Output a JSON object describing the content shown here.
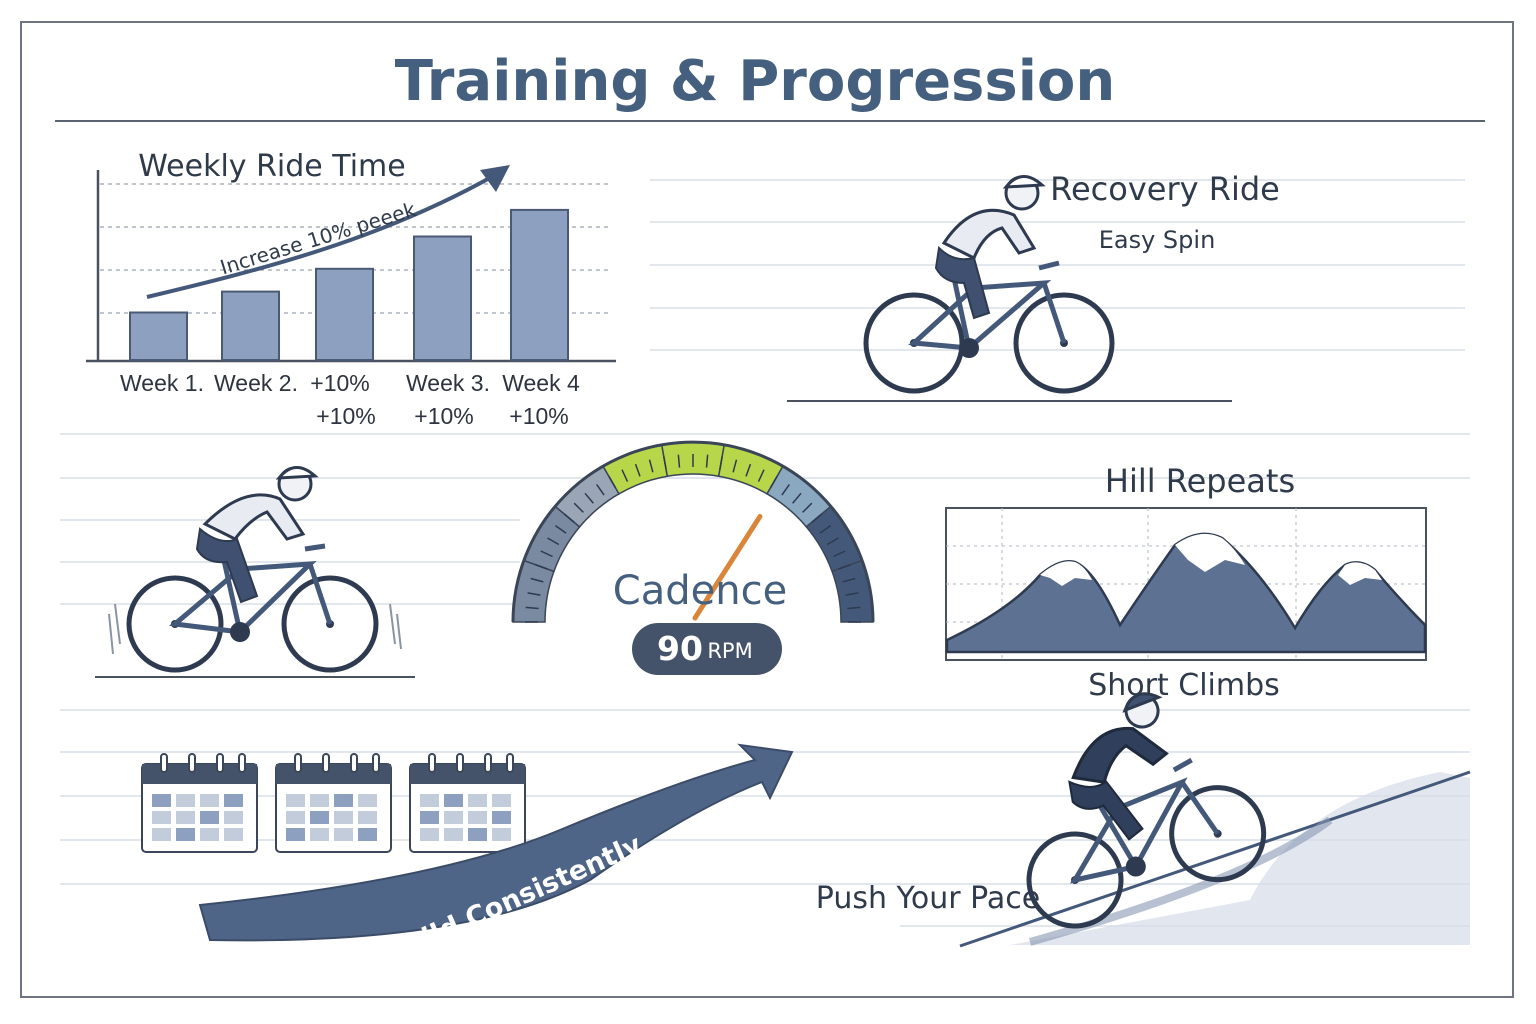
{
  "title": "Training & Progression",
  "weekly_chart": {
    "title": "Weekly Ride Time",
    "arrow_label": "Increase 10% peeek",
    "labels_row1": [
      "Week 1.",
      "Week 2.",
      "+10%",
      "Week 3.",
      "Week 4"
    ],
    "labels_row2": [
      "+10%",
      "+10%",
      "+10%"
    ],
    "bar_color": "#8ea0bf",
    "bar_heights_relative": [
      0.25,
      0.36,
      0.48,
      0.65,
      0.79
    ]
  },
  "recovery": {
    "title": "Recovery Ride",
    "subtitle": "Easy Spin"
  },
  "cadence": {
    "label": "Cadence",
    "value": "90",
    "unit": "RPM",
    "needle_fraction": 0.68,
    "colors": {
      "low": "#7a8aa0",
      "mid": "#b8d64a",
      "high": "#44597a"
    }
  },
  "hills": {
    "title": "Hill Repeats",
    "caption": "Short Climbs",
    "fill": "#5d7193"
  },
  "build": {
    "label": "Build Consistently",
    "calendar_count": 3
  },
  "push": {
    "label": "Push Your Pace"
  },
  "colors": {
    "accent": "#45607f",
    "ink": "#2f3a4a",
    "line": "#d6dce6"
  }
}
